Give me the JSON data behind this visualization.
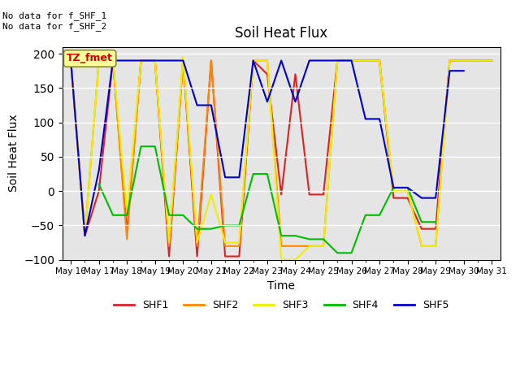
{
  "title": "Soil Heat Flux",
  "xlabel": "Time",
  "ylabel": "Soil Heat Flux",
  "ylim": [
    -100,
    210
  ],
  "yticks": [
    -100,
    -50,
    0,
    50,
    100,
    150,
    200
  ],
  "annotation_text": "No data for f_SHF_1\nNo data for f_SHF_2",
  "legend_box_text": "TZ_fmet",
  "legend_box_color": "#ffff99",
  "legend_box_text_color": "#cc0000",
  "bg_color": "#e5e5e5",
  "colors": {
    "SHF1": "#dd2222",
    "SHF2": "#ff8800",
    "SHF3": "#eeee00",
    "SHF4": "#00bb00",
    "SHF5": "#0000cc"
  },
  "x_days": [
    16.0,
    16.5,
    17.0,
    17.5,
    18.0,
    18.5,
    19.0,
    19.5,
    20.0,
    20.5,
    21.0,
    21.5,
    22.0,
    22.5,
    23.0,
    23.5,
    24.0,
    24.5,
    25.0,
    25.5,
    26.0,
    26.5,
    27.0,
    27.5,
    28.0,
    28.5,
    29.0,
    29.5,
    30.0,
    30.5,
    31.0
  ],
  "SHF1": [
    190,
    -65,
    0,
    190,
    -60,
    190,
    190,
    -95,
    190,
    -95,
    190,
    -95,
    -95,
    190,
    170,
    -5,
    170,
    -5,
    -5,
    190,
    190,
    190,
    190,
    -10,
    -10,
    -55,
    -55,
    190,
    190,
    190,
    190
  ],
  "SHF2": [
    190,
    -65,
    190,
    190,
    -70,
    190,
    190,
    -80,
    190,
    -80,
    190,
    -80,
    -80,
    190,
    190,
    -80,
    -80,
    -80,
    -80,
    190,
    190,
    190,
    190,
    0,
    0,
    -80,
    -80,
    190,
    190,
    190,
    190
  ],
  "SHF3": [
    190,
    -65,
    190,
    190,
    -30,
    190,
    190,
    -75,
    195,
    -75,
    -5,
    -75,
    -75,
    190,
    190,
    -100,
    -100,
    -80,
    -80,
    190,
    190,
    190,
    190,
    0,
    0,
    -80,
    -80,
    190,
    190,
    190,
    190
  ],
  "SHF4": [
    null,
    null,
    10,
    -35,
    -35,
    65,
    65,
    -35,
    -35,
    -55,
    -55,
    -50,
    -50,
    25,
    25,
    -65,
    -65,
    -70,
    -70,
    -90,
    -90,
    -35,
    -35,
    5,
    5,
    -45,
    -45,
    null,
    null,
    null,
    null
  ],
  "SHF5": [
    190,
    -65,
    30,
    190,
    190,
    190,
    190,
    190,
    190,
    125,
    125,
    20,
    20,
    190,
    130,
    190,
    130,
    190,
    190,
    190,
    190,
    105,
    105,
    5,
    5,
    -10,
    -10,
    175,
    175,
    null,
    null
  ]
}
